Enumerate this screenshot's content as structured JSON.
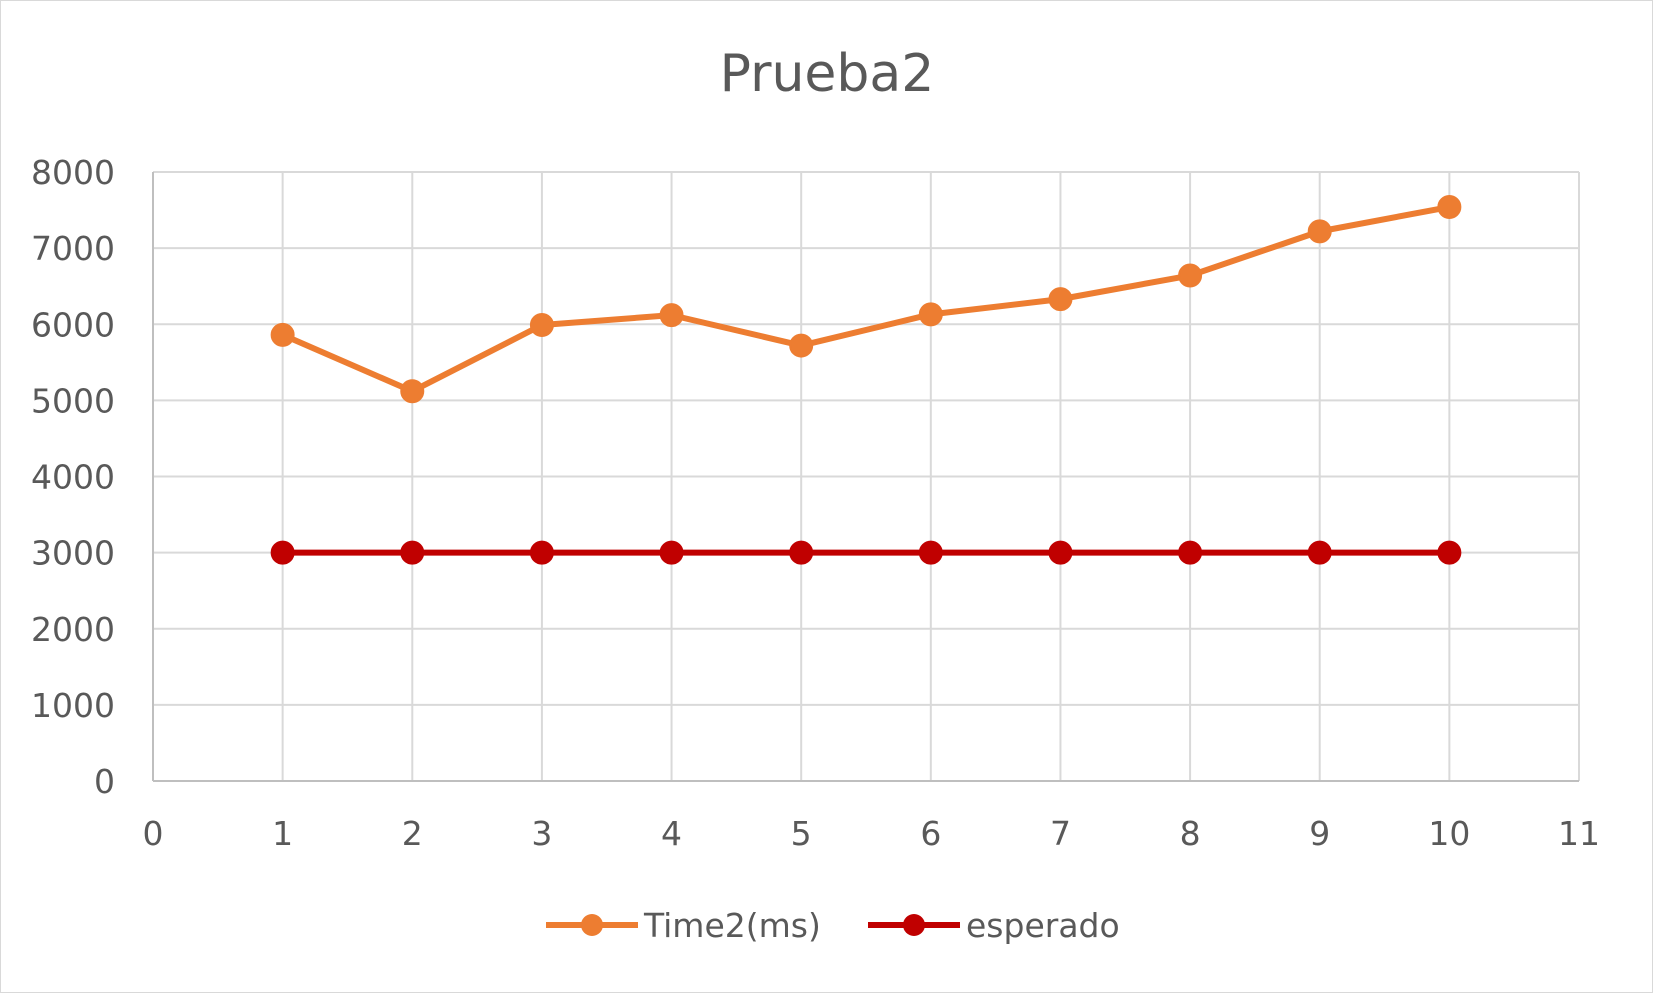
{
  "chart_data": {
    "type": "scatter",
    "title": "Prueba2",
    "xlabel": "",
    "ylabel": "",
    "xlim": [
      0,
      11
    ],
    "ylim": [
      0,
      8000
    ],
    "x_ticks": [
      0,
      1,
      2,
      3,
      4,
      5,
      6,
      7,
      8,
      9,
      10,
      11
    ],
    "y_ticks": [
      0,
      1000,
      2000,
      3000,
      4000,
      5000,
      6000,
      7000,
      8000
    ],
    "grid": true,
    "legend_position": "bottom",
    "series": [
      {
        "name": "Time2(ms)",
        "color": "#ed7d31",
        "x": [
          1,
          2,
          3,
          4,
          5,
          6,
          7,
          8,
          9,
          10
        ],
        "y": [
          5860,
          5120,
          5990,
          6120,
          5720,
          6130,
          6330,
          6640,
          7220,
          7540
        ]
      },
      {
        "name": "esperado",
        "color": "#c00000",
        "x": [
          1,
          2,
          3,
          4,
          5,
          6,
          7,
          8,
          9,
          10
        ],
        "y": [
          3000,
          3000,
          3000,
          3000,
          3000,
          3000,
          3000,
          3000,
          3000,
          3000
        ]
      }
    ],
    "colors": {
      "grid": "#d9d9d9",
      "axis": "#bfbfbf",
      "text": "#595959"
    }
  }
}
